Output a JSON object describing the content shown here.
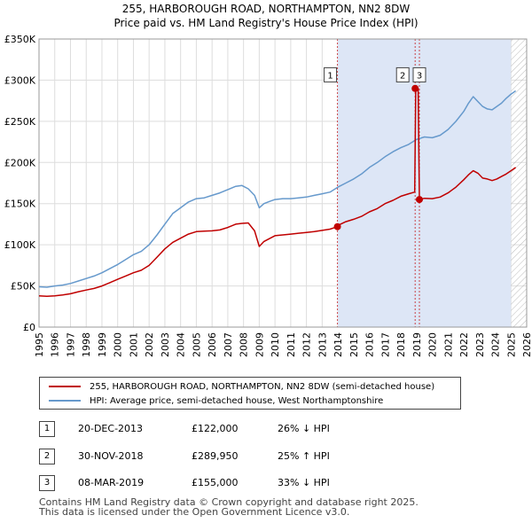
{
  "title_line1": "255, HARBOROUGH ROAD, NORTHAMPTON, NN2 8DW",
  "title_line2": "Price paid vs. HM Land Registry's House Price Index (HPI)",
  "chart_data": {
    "type": "line",
    "title": "255, HARBOROUGH ROAD, NORTHAMPTON, NN2 8DW — Price paid vs. HM Land Registry's House Price Index (HPI)",
    "xlim": [
      1995,
      2026
    ],
    "ylim": [
      0,
      350000
    ],
    "x_ticks": [
      1995,
      1996,
      1997,
      1998,
      1999,
      2000,
      2001,
      2002,
      2003,
      2004,
      2005,
      2006,
      2007,
      2008,
      2009,
      2010,
      2011,
      2012,
      2013,
      2014,
      2015,
      2016,
      2017,
      2018,
      2019,
      2020,
      2021,
      2022,
      2023,
      2024,
      2025,
      2026
    ],
    "y_ticks": [
      0,
      50000,
      100000,
      150000,
      200000,
      250000,
      300000,
      350000
    ],
    "y_tick_labels": [
      "£0",
      "£50K",
      "£100K",
      "£150K",
      "£200K",
      "£250K",
      "£300K",
      "£350K"
    ],
    "grid": true,
    "hatched_after": 2025.0,
    "series": [
      {
        "name": "HPI: Average price, semi-detached house, West Northamptonshire",
        "color": "#6699cc",
        "x": [
          1995,
          1995.5,
          1996,
          1996.5,
          1997,
          1997.5,
          1998,
          1998.5,
          1999,
          1999.5,
          2000,
          2000.5,
          2001,
          2001.5,
          2002,
          2002.5,
          2003,
          2003.5,
          2004,
          2004.5,
          2005,
          2005.5,
          2006,
          2006.5,
          2007,
          2007.5,
          2007.9,
          2008.3,
          2008.7,
          2009.0,
          2009.3,
          2009.7,
          2010,
          2010.5,
          2011,
          2011.5,
          2012,
          2012.5,
          2013,
          2013.5,
          2014,
          2014.5,
          2015,
          2015.5,
          2016,
          2016.5,
          2017,
          2017.5,
          2018,
          2018.5,
          2019,
          2019.5,
          2020,
          2020.5,
          2021,
          2021.5,
          2022,
          2022.3,
          2022.6,
          2022.9,
          2023.2,
          2023.5,
          2023.8,
          2024.1,
          2024.4,
          2024.7,
          2025.0,
          2025.3
        ],
        "y": [
          49000,
          48500,
          50000,
          51000,
          53000,
          56000,
          59000,
          62000,
          66000,
          71000,
          76000,
          82000,
          88000,
          92000,
          100000,
          112000,
          125000,
          138000,
          145000,
          152000,
          156000,
          157000,
          160000,
          163000,
          167000,
          171000,
          172000,
          168000,
          160000,
          145000,
          150000,
          153000,
          155000,
          156000,
          156000,
          157000,
          158000,
          160000,
          162000,
          164000,
          170000,
          175000,
          180000,
          186000,
          194000,
          200000,
          207000,
          213000,
          218000,
          222000,
          228000,
          231000,
          230000,
          233000,
          240000,
          250000,
          262000,
          272000,
          280000,
          274000,
          268000,
          265000,
          264000,
          268000,
          272000,
          278000,
          283000,
          287000
        ]
      },
      {
        "name": "255, HARBOROUGH ROAD, NORTHAMPTON, NN2 8DW (semi-detached house)",
        "color": "#c00000",
        "x": [
          1995,
          1995.5,
          1996,
          1996.5,
          1997,
          1997.5,
          1998,
          1998.5,
          1999,
          1999.5,
          2000,
          2000.5,
          2001,
          2001.5,
          2002,
          2002.5,
          2003,
          2003.5,
          2004,
          2004.5,
          2005,
          2005.5,
          2006,
          2006.5,
          2007,
          2007.5,
          2007.9,
          2008.3,
          2008.7,
          2009.0,
          2009.3,
          2009.7,
          2010,
          2010.5,
          2011,
          2011.5,
          2012,
          2012.5,
          2013,
          2013.5,
          2013.97,
          2014,
          2014.5,
          2015,
          2015.5,
          2016,
          2016.5,
          2017,
          2017.5,
          2018,
          2018.5,
          2018.88,
          2018.95,
          2019.0,
          2019.1,
          2019.18,
          2019.5,
          2020,
          2020.5,
          2021,
          2021.5,
          2022,
          2022.3,
          2022.6,
          2022.9,
          2023.2,
          2023.5,
          2023.8,
          2024.1,
          2024.4,
          2024.7,
          2025.0,
          2025.3
        ],
        "y": [
          38000,
          37500,
          38000,
          39000,
          40500,
          43000,
          45000,
          47000,
          50000,
          54000,
          58000,
          62000,
          66000,
          69000,
          75000,
          85000,
          95000,
          103000,
          108000,
          113000,
          116000,
          116500,
          117000,
          118000,
          121000,
          125000,
          126000,
          126500,
          117000,
          98000,
          104000,
          108000,
          111000,
          112000,
          113000,
          114000,
          115000,
          116000,
          117500,
          119000,
          122000,
          123500,
          128000,
          131000,
          134500,
          140000,
          144000,
          150000,
          154000,
          159000,
          162000,
          164000,
          289950,
          289950,
          289950,
          155000,
          156500,
          156000,
          158000,
          163000,
          170000,
          179000,
          185000,
          190000,
          187000,
          181000,
          180000,
          178000,
          180000,
          183000,
          186000,
          190000,
          194000
        ]
      }
    ],
    "sale_markers": [
      {
        "label": "1",
        "x": 2013.97,
        "y": 122000
      },
      {
        "label": "2",
        "x": 2018.91,
        "y": 289950
      },
      {
        "label": "3",
        "x": 2019.18,
        "y": 155000
      }
    ],
    "legend": [
      "255, HARBOROUGH ROAD, NORTHAMPTON, NN2 8DW (semi-detached house)",
      "HPI: Average price, semi-detached house, West Northamptonshire"
    ],
    "legend_position": "below"
  },
  "transactions": [
    {
      "num": "1",
      "date": "20-DEC-2013",
      "price": "£122,000",
      "hpi": "26% ↓ HPI"
    },
    {
      "num": "2",
      "date": "30-NOV-2018",
      "price": "£289,950",
      "hpi": "25% ↑ HPI"
    },
    {
      "num": "3",
      "date": "08-MAR-2019",
      "price": "£155,000",
      "hpi": "33% ↓ HPI"
    }
  ],
  "footer_line1": "Contains HM Land Registry data © Crown copyright and database right 2025.",
  "footer_line2": "This data is licensed under the Open Government Licence v3.0.",
  "colors": {
    "property": "#c00000",
    "hpi": "#6699cc",
    "shade": "#dde6f6",
    "grid": "#dddddd"
  }
}
